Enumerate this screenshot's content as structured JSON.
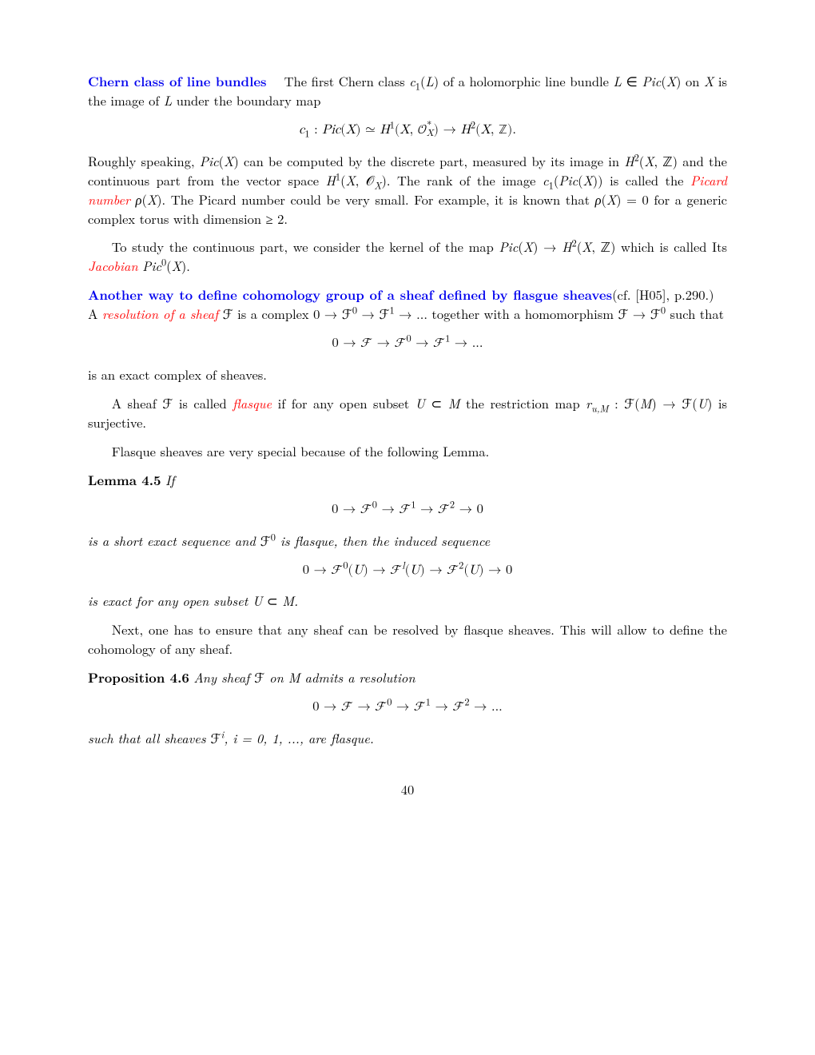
{
  "section1": {
    "heading": "Chern class of line bundles",
    "text_a": "The first Chern class ",
    "text_b": " of a holomorphic line bundle ",
    "text_c": " on ",
    "text_d": " is the image of ",
    "text_e": " under the boundary map"
  },
  "math1": "c₁ : Pic(X) ≃ H¹(X, 𝒪",
  "math1b": ") → H²(X, ℤ).",
  "para2": {
    "a": "Roughly speaking, ",
    "b": " can be computed by the discrete part, measured by its image in ",
    "c": " and the continuous part from the vector space ",
    "d": ". The rank of the image ",
    "e": " is called the ",
    "picard": "Picard number",
    "f": ". The Picard number could be very small. For example, it is known that ",
    "g": " for a generic complex torus with dimension ≥ 2."
  },
  "para3": {
    "a": "To study the continuous part, we consider the kernel of the map ",
    "b": " which is called Its ",
    "jac": "Jacobian",
    "c": "."
  },
  "section2": {
    "heading": "Another way to define cohomology group of a sheaf defined by flasgue sheaves",
    "cf": "(cf. [H05], p.290.) A ",
    "res": "resolution of a sheaf",
    "a": " is a complex ",
    "b": " together with a homomorphism ",
    "c": " such that"
  },
  "math3": "0 → ℱ → ℱ⁰ → ℱ¹ → ...",
  "para5": "is an exact complex of sheaves.",
  "para6": {
    "a": "A sheaf ",
    "b": " is called ",
    "flasque": "flasque",
    "c": " if for any open subset ",
    "d": " the restriction map ",
    "e": " is surjective."
  },
  "para7": "Flasque sheaves are very special because of the following Lemma.",
  "lemma": {
    "label": "Lemma 4.5",
    "if": "If",
    "math": "0 → ℱ⁰ → ℱ¹ → ℱ² → 0",
    "mid": "is a short exact sequence and ",
    "mid2": " is flasque, then the induced sequence",
    "math2": "0 → ℱ⁰(U) → ℱ ˡ(U) → ℱ²(U) → 0",
    "end": "is exact for any open subset ",
    "end2": "."
  },
  "para8": "Next, one has to ensure that any sheaf can be resolved by flasque sheaves. This will allow to define the cohomology of any sheaf.",
  "prop": {
    "label": "Proposition 4.6",
    "a": "Any sheaf ",
    "b": " on ",
    "c": " admits a resolution",
    "math": "0 → ℱ → ℱ⁰ → ℱ¹ → ℱ² → ...",
    "d": "such that all sheaves ",
    "e": ", ",
    "f": ", are flasque."
  },
  "pagenum": "40",
  "colors": {
    "blue": "#0000ee",
    "red": "#ff0000",
    "text": "#000000",
    "bg": "#ffffff"
  },
  "fontsize_body": 16.5
}
